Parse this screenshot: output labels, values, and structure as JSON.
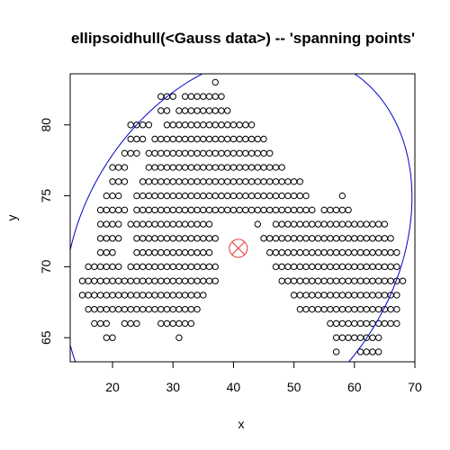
{
  "chart_data": {
    "type": "scatter",
    "title": "ellipsoidhull(<Gauss data>) -- 'spanning points'",
    "xlabel": "x",
    "ylabel": "y",
    "xlim": [
      13,
      70
    ],
    "ylim": [
      63.3,
      83.6
    ],
    "x_ticks": [
      20,
      30,
      40,
      50,
      60,
      70
    ],
    "y_ticks": [
      65,
      70,
      75,
      80
    ],
    "grid": false,
    "legend": "none",
    "colors": {
      "points": "#000000",
      "hull": "#0000cc",
      "center": "#e8363a"
    },
    "ellipse": {
      "center": [
        40.8,
        71.3
      ],
      "semi_axis_a": 29.0,
      "semi_axis_b": 13.2,
      "rotation_deg": 9
    },
    "center": [
      40.8,
      71.3
    ],
    "rows": [
      {
        "y": 83,
        "x": [
          [
            37,
            37
          ]
        ]
      },
      {
        "y": 82,
        "x": [
          [
            28,
            30
          ],
          [
            32,
            38
          ]
        ]
      },
      {
        "y": 81,
        "x": [
          [
            28,
            29
          ],
          [
            31,
            39
          ]
        ]
      },
      {
        "y": 80,
        "x": [
          [
            23,
            26
          ],
          [
            29,
            43
          ]
        ]
      },
      {
        "y": 79,
        "x": [
          [
            23,
            25
          ],
          [
            27,
            45
          ]
        ]
      },
      {
        "y": 78,
        "x": [
          [
            22,
            24
          ],
          [
            26,
            46
          ]
        ]
      },
      {
        "y": 77,
        "x": [
          [
            20,
            22
          ],
          [
            26,
            48
          ]
        ]
      },
      {
        "y": 76,
        "x": [
          [
            20,
            22
          ],
          [
            25,
            51
          ]
        ]
      },
      {
        "y": 75,
        "x": [
          [
            19,
            21
          ],
          [
            24,
            52
          ],
          [
            58,
            58
          ]
        ]
      },
      {
        "y": 74,
        "x": [
          [
            18,
            22
          ],
          [
            24,
            53
          ],
          [
            55,
            59
          ]
        ]
      },
      {
        "y": 73,
        "x": [
          [
            18,
            21
          ],
          [
            23,
            36
          ],
          [
            44,
            44
          ],
          [
            47,
            65
          ]
        ]
      },
      {
        "y": 72,
        "x": [
          [
            18,
            21
          ],
          [
            24,
            37
          ],
          [
            45,
            66
          ]
        ]
      },
      {
        "y": 71,
        "x": [
          [
            18,
            20
          ],
          [
            24,
            36
          ],
          [
            46,
            67
          ]
        ]
      },
      {
        "y": 70,
        "x": [
          [
            16,
            21
          ],
          [
            23,
            37
          ],
          [
            47,
            67
          ]
        ]
      },
      {
        "y": 69,
        "x": [
          [
            15,
            22
          ],
          [
            23,
            37
          ],
          [
            48,
            68
          ]
        ]
      },
      {
        "y": 68,
        "x": [
          [
            15,
            35
          ],
          [
            50,
            67
          ]
        ]
      },
      {
        "y": 67,
        "x": [
          [
            16,
            34
          ],
          [
            51,
            67
          ]
        ]
      },
      {
        "y": 66,
        "x": [
          [
            17,
            19
          ],
          [
            22,
            24
          ],
          [
            28,
            33
          ],
          [
            56,
            67
          ]
        ]
      },
      {
        "y": 65,
        "x": [
          [
            19,
            20
          ],
          [
            31,
            31
          ],
          [
            57,
            64
          ]
        ]
      },
      {
        "y": 64,
        "x": [
          [
            57,
            57
          ],
          [
            61,
            64
          ]
        ]
      }
    ]
  }
}
